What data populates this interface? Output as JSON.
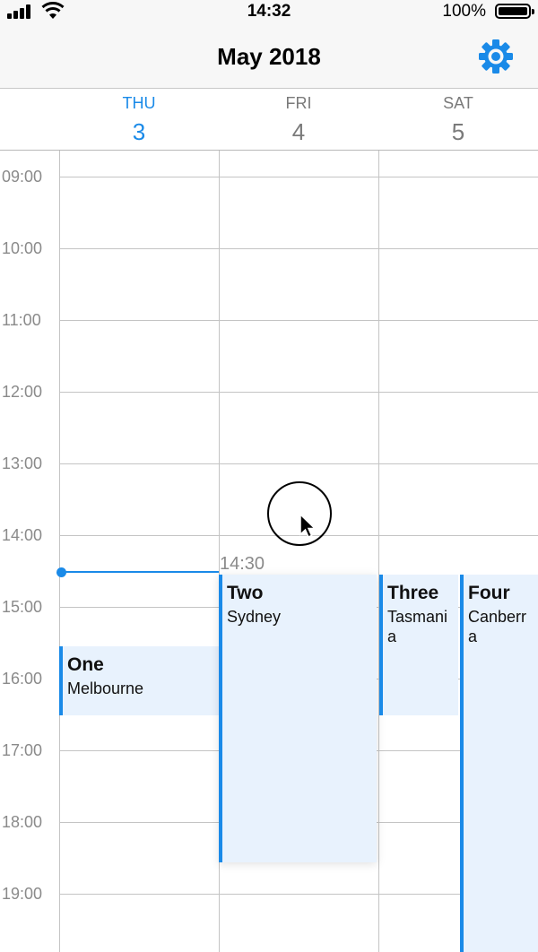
{
  "status_bar": {
    "time": "14:32",
    "battery": "100%"
  },
  "navbar": {
    "title": "May 2018"
  },
  "days": [
    {
      "dow": "THU",
      "num": "3",
      "today": true
    },
    {
      "dow": "FRI",
      "num": "4",
      "today": false
    },
    {
      "dow": "SAT",
      "num": "5",
      "today": false
    }
  ],
  "hours": [
    "09:00",
    "10:00",
    "11:00",
    "12:00",
    "13:00",
    "14:00",
    "15:00",
    "16:00",
    "17:00",
    "18:00",
    "19:00"
  ],
  "current_time": "14:30",
  "events": [
    {
      "title": "One",
      "location": "Melbourne",
      "day": "THU 3",
      "start": "15:30",
      "end": "16:30"
    },
    {
      "title": "Two",
      "location": "Sydney",
      "day": "FRI 4",
      "start": "14:30",
      "end": "18:30"
    },
    {
      "title": "Three",
      "location": "Tasmania",
      "day": "SAT 5",
      "start": "14:30",
      "end": "16:30"
    },
    {
      "title": "Four",
      "location": "Canberra",
      "day": "SAT 5",
      "start": "14:30",
      "end": "19:50"
    }
  ],
  "colors": {
    "accent": "#1a8ae8",
    "event_bg": "#e8f2fd",
    "grid": "#c4c4c4"
  },
  "icons": {
    "settings": "gear-icon",
    "signal": "cellular-signal-icon",
    "wifi": "wifi-icon",
    "battery": "battery-icon"
  }
}
